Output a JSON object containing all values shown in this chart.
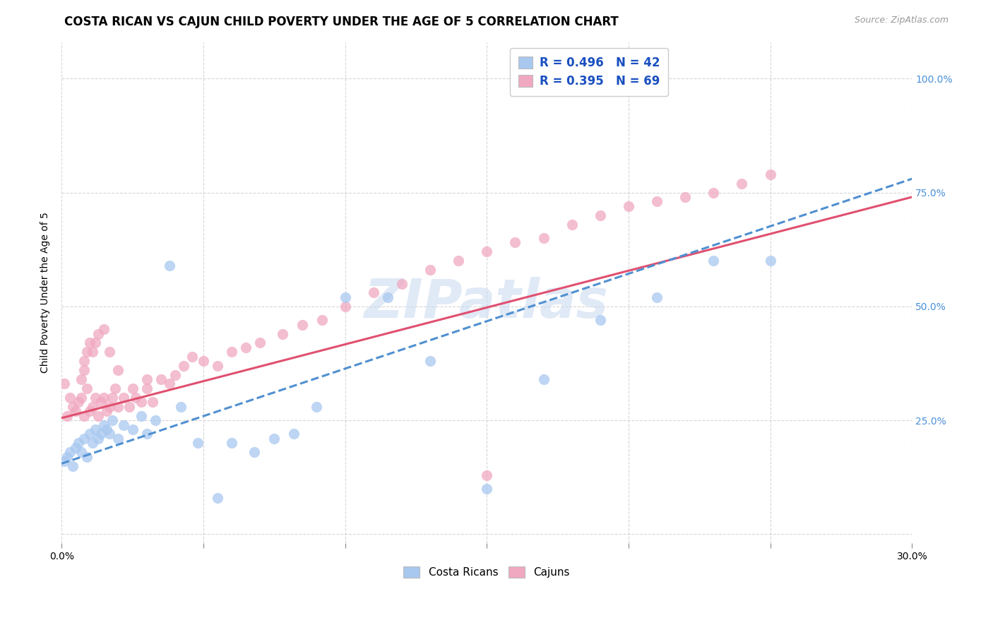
{
  "title": "COSTA RICAN VS CAJUN CHILD POVERTY UNDER THE AGE OF 5 CORRELATION CHART",
  "source": "Source: ZipAtlas.com",
  "ylabel": "Child Poverty Under the Age of 5",
  "ytick_vals": [
    0.0,
    0.25,
    0.5,
    0.75,
    1.0
  ],
  "xmin": 0.0,
  "xmax": 0.3,
  "ymin": -0.02,
  "ymax": 1.08,
  "legend_blue_label": "Costa Ricans",
  "legend_pink_label": "Cajuns",
  "r_blue": "R = 0.496",
  "n_blue": "N = 42",
  "r_pink": "R = 0.395",
  "n_pink": "N = 69",
  "blue_color": "#A8C8F0",
  "pink_color": "#F0A8C0",
  "blue_line_color": "#5090D0",
  "pink_line_color": "#E05070",
  "watermark_color": "#C8D8F0",
  "background_color": "#FFFFFF",
  "title_fontsize": 12,
  "axis_label_fontsize": 10,
  "tick_label_fontsize": 10,
  "costa_rican_x": [
    0.001,
    0.002,
    0.003,
    0.004,
    0.005,
    0.006,
    0.007,
    0.008,
    0.009,
    0.01,
    0.011,
    0.012,
    0.013,
    0.014,
    0.015,
    0.016,
    0.017,
    0.018,
    0.02,
    0.022,
    0.025,
    0.028,
    0.03,
    0.033,
    0.038,
    0.042,
    0.048,
    0.055,
    0.06,
    0.068,
    0.075,
    0.082,
    0.09,
    0.1,
    0.115,
    0.13,
    0.15,
    0.17,
    0.19,
    0.21,
    0.23,
    0.25
  ],
  "costa_rican_y": [
    0.16,
    0.17,
    0.18,
    0.15,
    0.19,
    0.2,
    0.18,
    0.21,
    0.17,
    0.22,
    0.2,
    0.23,
    0.21,
    0.22,
    0.24,
    0.23,
    0.22,
    0.25,
    0.21,
    0.24,
    0.23,
    0.26,
    0.22,
    0.25,
    0.59,
    0.28,
    0.2,
    0.08,
    0.2,
    0.18,
    0.21,
    0.22,
    0.28,
    0.52,
    0.52,
    0.38,
    0.1,
    0.34,
    0.47,
    0.52,
    0.6,
    0.6
  ],
  "cajun_x": [
    0.001,
    0.002,
    0.003,
    0.004,
    0.005,
    0.006,
    0.007,
    0.008,
    0.009,
    0.01,
    0.011,
    0.012,
    0.013,
    0.014,
    0.015,
    0.016,
    0.017,
    0.018,
    0.019,
    0.02,
    0.022,
    0.024,
    0.026,
    0.028,
    0.03,
    0.032,
    0.035,
    0.038,
    0.04,
    0.043,
    0.046,
    0.05,
    0.055,
    0.06,
    0.065,
    0.07,
    0.078,
    0.085,
    0.092,
    0.1,
    0.11,
    0.12,
    0.13,
    0.14,
    0.15,
    0.16,
    0.17,
    0.18,
    0.19,
    0.2,
    0.21,
    0.22,
    0.23,
    0.24,
    0.25,
    0.007,
    0.008,
    0.008,
    0.009,
    0.01,
    0.011,
    0.012,
    0.013,
    0.015,
    0.017,
    0.02,
    0.025,
    0.03,
    0.15
  ],
  "cajun_y": [
    0.33,
    0.26,
    0.3,
    0.28,
    0.27,
    0.29,
    0.3,
    0.26,
    0.32,
    0.27,
    0.28,
    0.3,
    0.26,
    0.29,
    0.3,
    0.27,
    0.28,
    0.3,
    0.32,
    0.28,
    0.3,
    0.28,
    0.3,
    0.29,
    0.32,
    0.29,
    0.34,
    0.33,
    0.35,
    0.37,
    0.39,
    0.38,
    0.37,
    0.4,
    0.41,
    0.42,
    0.44,
    0.46,
    0.47,
    0.5,
    0.53,
    0.55,
    0.58,
    0.6,
    0.62,
    0.64,
    0.65,
    0.68,
    0.7,
    0.72,
    0.73,
    0.74,
    0.75,
    0.77,
    0.79,
    0.34,
    0.36,
    0.38,
    0.4,
    0.42,
    0.4,
    0.42,
    0.44,
    0.45,
    0.4,
    0.36,
    0.32,
    0.34,
    0.13
  ],
  "blue_trendline_x": [
    0.0,
    0.3
  ],
  "blue_trendline_y": [
    0.155,
    0.78
  ],
  "pink_trendline_x": [
    0.0,
    0.3
  ],
  "pink_trendline_y": [
    0.255,
    0.74
  ]
}
